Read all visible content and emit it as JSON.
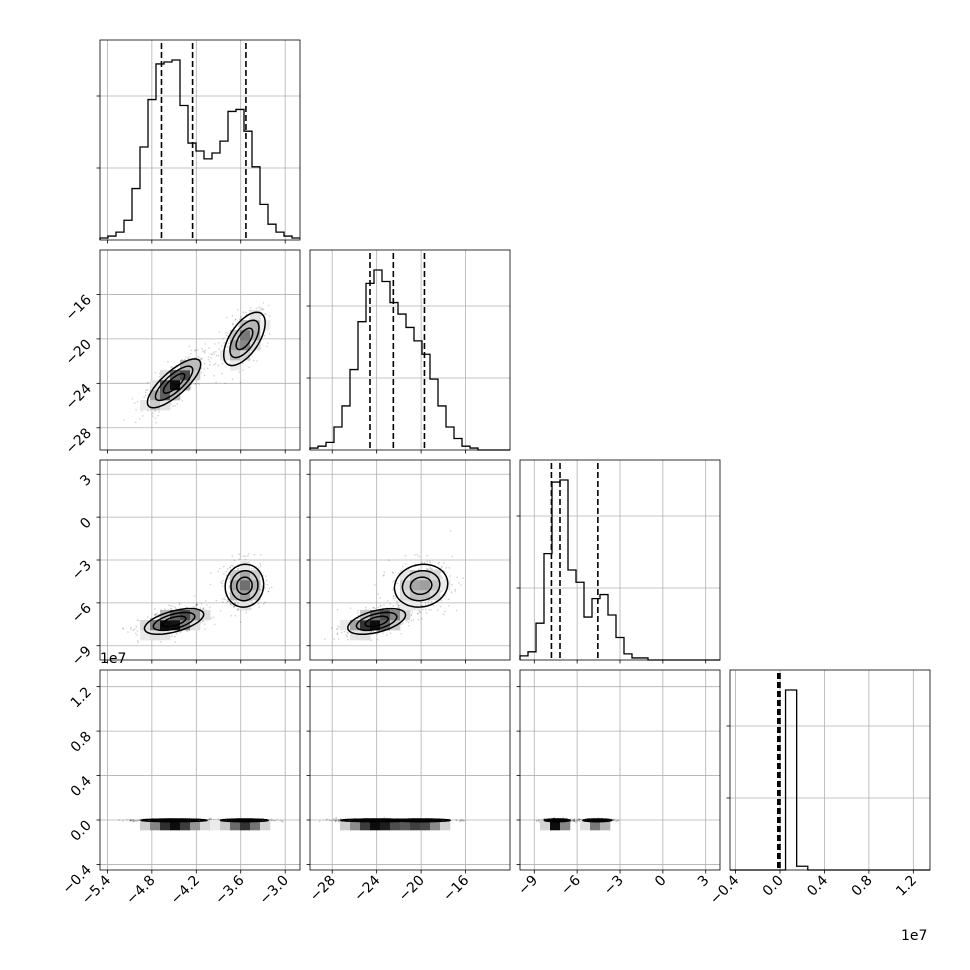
{
  "chart_data": {
    "type": "corner",
    "n_params": 4,
    "grid": true,
    "quantile_lines": "dashed",
    "axes_ticks": {
      "p0": {
        "ticks": [
          -5.4,
          -4.8,
          -4.2,
          -3.6,
          -3.0
        ],
        "labels": [
          "−5.4",
          "−4.8",
          "−4.2",
          "−3.6",
          "−3.0"
        ],
        "range": [
          -5.5,
          -2.8
        ]
      },
      "p1": {
        "ticks": [
          -28,
          -24,
          -20,
          -16
        ],
        "labels": [
          "−28",
          "−24",
          "−20",
          "−16"
        ],
        "range": [
          -30,
          -12
        ]
      },
      "p2": {
        "ticks": [
          -9,
          -6,
          -3,
          0,
          3
        ],
        "labels": [
          "−9",
          "−6",
          "−3",
          "0",
          "3"
        ],
        "range": [
          -10,
          4
        ]
      },
      "p3": {
        "ticks": [
          -0.4,
          0.0,
          0.4,
          0.8,
          1.2
        ],
        "labels": [
          "−0.4",
          "0.0",
          "0.4",
          "0.8",
          "1.2"
        ],
        "range": [
          -0.45,
          1.35
        ],
        "exponent_label": "1e7"
      }
    },
    "histograms": [
      {
        "param": "p0",
        "range": [
          -5.5,
          -2.8
        ],
        "counts": [
          1,
          2,
          4,
          10,
          26,
          47,
          71,
          89,
          90,
          91,
          68,
          49,
          45,
          41,
          44,
          50,
          65,
          66,
          55,
          37,
          18,
          8,
          4,
          2,
          1
        ],
        "quantiles": [
          -4.67,
          -4.25,
          -3.53
        ]
      },
      {
        "param": "p1",
        "range": [
          -30,
          -12
        ],
        "counts": [
          1,
          2,
          4,
          12,
          23,
          42,
          67,
          87,
          94,
          88,
          77,
          71,
          64,
          57,
          50,
          37,
          23,
          12,
          6,
          2,
          1,
          0,
          0,
          0,
          0
        ],
        "quantiles": [
          -24.6,
          -22.5,
          -19.7
        ]
      },
      {
        "param": "p2",
        "range": [
          -10,
          4
        ],
        "counts": [
          2,
          4,
          18,
          52,
          87,
          88,
          44,
          38,
          21,
          30,
          32,
          22,
          11,
          3,
          1,
          1,
          0,
          0,
          0,
          0,
          0,
          0,
          0,
          0,
          0
        ],
        "quantiles": [
          -7.8,
          -7.2,
          -4.55
        ]
      },
      {
        "param": "p3",
        "range": [
          -0.45,
          1.35
        ],
        "step_values": [
          0,
          0,
          0,
          0,
          0,
          96,
          2,
          0,
          0,
          0,
          0,
          0,
          0,
          0,
          0,
          0,
          0,
          0
        ],
        "quantiles": [
          -0.02,
          -0.01,
          0.0
        ]
      }
    ],
    "scatter_panels": [
      {
        "x": "p0",
        "y": "p1",
        "clusters": [
          {
            "cx": -4.5,
            "cy": -24.0,
            "sx": 0.18,
            "sy": 1.1,
            "rho": 0.78,
            "weight": 0.62
          },
          {
            "cx": -3.55,
            "cy": -20.0,
            "sx": 0.14,
            "sy": 1.2,
            "rho": 0.6,
            "weight": 0.38
          }
        ]
      },
      {
        "x": "p0",
        "y": "p2",
        "clusters": [
          {
            "cx": -4.5,
            "cy": -7.3,
            "sx": 0.2,
            "sy": 0.45,
            "rho": 0.55,
            "weight": 0.62
          },
          {
            "cx": -3.55,
            "cy": -4.8,
            "sx": 0.13,
            "sy": 0.75,
            "rho": 0.05,
            "weight": 0.38
          }
        ]
      },
      {
        "x": "p1",
        "y": "p2",
        "clusters": [
          {
            "cx": -24.0,
            "cy": -7.3,
            "sx": 1.3,
            "sy": 0.45,
            "rho": 0.5,
            "weight": 0.62
          },
          {
            "cx": -20.0,
            "cy": -4.8,
            "sx": 1.2,
            "sy": 0.75,
            "rho": 0.1,
            "weight": 0.38
          }
        ]
      },
      {
        "x": "p0",
        "y": "p3",
        "clusters": [
          {
            "cx": -4.5,
            "cy": -0.003,
            "sx": 0.22,
            "sy": 0.006,
            "rho": 0.0,
            "weight": 0.62
          },
          {
            "cx": -3.55,
            "cy": -0.003,
            "sx": 0.16,
            "sy": 0.006,
            "rho": 0.0,
            "weight": 0.38
          }
        ]
      },
      {
        "x": "p1",
        "y": "p3",
        "clusters": [
          {
            "cx": -24.0,
            "cy": -0.003,
            "sx": 1.6,
            "sy": 0.006,
            "rho": 0.0,
            "weight": 0.62
          },
          {
            "cx": -20.0,
            "cy": -0.003,
            "sx": 1.3,
            "sy": 0.006,
            "rho": 0.0,
            "weight": 0.38
          }
        ]
      },
      {
        "x": "p2",
        "y": "p3",
        "clusters": [
          {
            "cx": -7.4,
            "cy": -0.003,
            "sx": 0.45,
            "sy": 0.006,
            "rho": 0.0,
            "weight": 0.62
          },
          {
            "cx": -4.6,
            "cy": -0.003,
            "sx": 0.5,
            "sy": 0.006,
            "rho": 0.0,
            "weight": 0.38
          }
        ]
      }
    ],
    "offset_labels": [
      {
        "param": "p3",
        "axis": "y",
        "text": "1e7"
      },
      {
        "param": "p3",
        "axis": "x",
        "text": "1e7"
      }
    ]
  }
}
